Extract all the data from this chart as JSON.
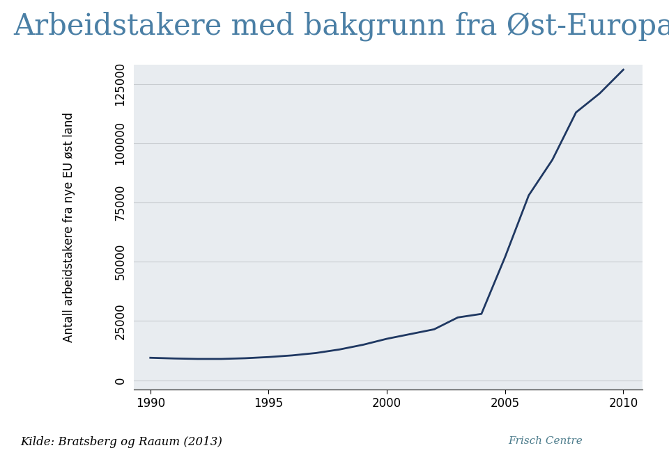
{
  "title": "Arbeidstakere med bakgrunn fra Øst-Europa…",
  "ylabel": "Antall arbeidstakere fra nye EU øst land",
  "source_text": "Kilde: Bratsberg og Raaum (2013)",
  "frisch_text": "Frisch Centre",
  "line_color": "#1f3862",
  "plot_bg_color": "#e8ecf0",
  "outer_bg_color": "#ffffff",
  "title_color": "#4a7fa5",
  "ytick_labels": [
    "0",
    "25000",
    "50000",
    "75000",
    "100000",
    "125000"
  ],
  "ytick_values": [
    0,
    25000,
    50000,
    75000,
    100000,
    125000
  ],
  "xtick_values": [
    1990,
    1995,
    2000,
    2005,
    2010
  ],
  "xlim": [
    1989.3,
    2010.8
  ],
  "ylim": [
    -4000,
    133000
  ],
  "years": [
    1990,
    1991,
    1992,
    1993,
    1994,
    1995,
    1996,
    1997,
    1998,
    1999,
    2000,
    2001,
    2002,
    2003,
    2004,
    2005,
    2006,
    2007,
    2008,
    2009,
    2010
  ],
  "values": [
    9500,
    9200,
    9000,
    9000,
    9300,
    9800,
    10500,
    11500,
    13000,
    15000,
    17500,
    19500,
    21500,
    26500,
    28000,
    52000,
    78000,
    93000,
    113000,
    121000,
    131000
  ],
  "logo_color": "#4a7a8a",
  "grid_color": "#c8ccd0",
  "title_fontsize": 30,
  "tick_fontsize": 12,
  "ylabel_fontsize": 12,
  "source_fontsize": 12
}
